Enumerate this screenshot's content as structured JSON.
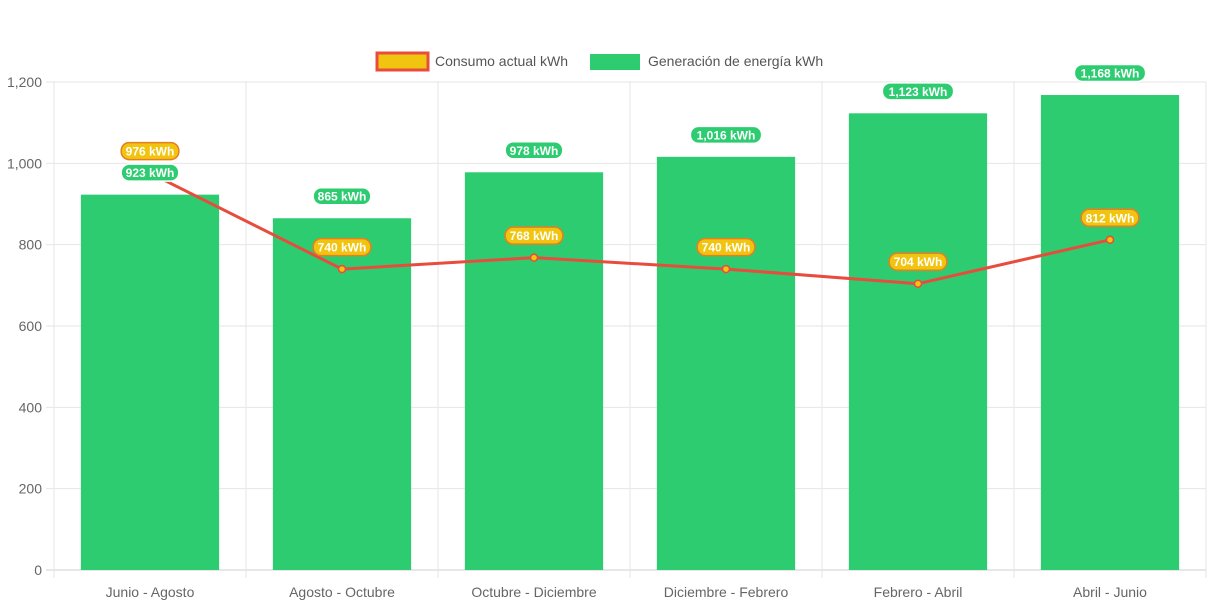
{
  "chart_data": {
    "type": "bar",
    "categories": [
      "Junio - Agosto",
      "Agosto - Octubre",
      "Octubre - Diciembre",
      "Diciembre - Febrero",
      "Febrero - Abril",
      "Abril - Junio"
    ],
    "series": [
      {
        "name": "Consumo actual kWh",
        "type": "line",
        "color": "#e74c3c",
        "point_color": "#f1c40f",
        "values": [
          976,
          740,
          768,
          740,
          704,
          812
        ]
      },
      {
        "name": "Generación de energía kWh",
        "type": "bar",
        "color": "#2ecc71",
        "values": [
          923,
          865,
          978,
          1016,
          1123,
          1168
        ]
      }
    ],
    "data_labels": {
      "consumo": [
        "976 kWh",
        "740 kWh",
        "768 kWh",
        "740 kWh",
        "704 kWh",
        "812 kWh"
      ],
      "generacion": [
        "923 kWh",
        "865 kWh",
        "978 kWh",
        "1,016 kWh",
        "1,123 kWh",
        "1,168 kWh"
      ]
    },
    "y_ticks": [
      "0",
      "200",
      "400",
      "600",
      "800",
      "1,000",
      "1,200"
    ],
    "ylim": [
      0,
      1200
    ],
    "grid": true,
    "legend_position": "top-center",
    "title": "",
    "xlabel": "",
    "ylabel": ""
  }
}
